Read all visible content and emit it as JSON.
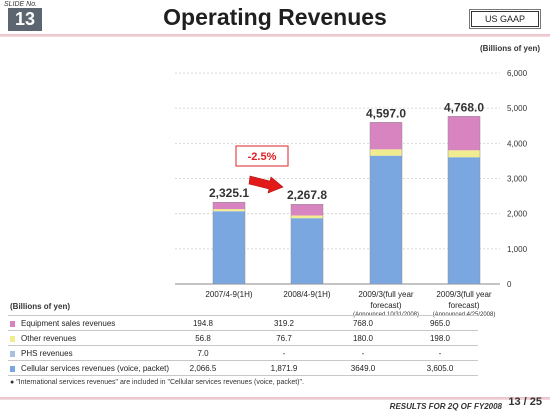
{
  "header": {
    "slide_no_label": "SLIDE No.",
    "slide_no": "13",
    "title": "Operating Revenues",
    "badge": "US GAAP"
  },
  "units_label": "(Billions of yen)",
  "chart_data": {
    "type": "bar",
    "stacked": true,
    "categories": [
      "2007/4-9(1H)",
      "2008/4-9(1H)",
      "2009/3(full year forecast)",
      "2009/3(full year forecast)"
    ],
    "category_lines": [
      [
        "2007/4-9(1H)"
      ],
      [
        "2008/4-9(1H)"
      ],
      [
        "2009/3(full year",
        "forecast)"
      ],
      [
        "2009/3(full year",
        "forecast)"
      ]
    ],
    "sub_notes": [
      "",
      "",
      "(Announced 10/31/2008)",
      "(Announced 4/25/2008)"
    ],
    "series": [
      {
        "name": "Cellular services revenues (voice, packet)",
        "color": "#7ba7e0",
        "values": [
          2066.5,
          1871.9,
          3649.0,
          3605.0
        ]
      },
      {
        "name": "PHS revenues",
        "color": "#aac0de",
        "values": [
          7.0,
          0,
          0,
          0
        ]
      },
      {
        "name": "Other revenues",
        "color": "#f2ec90",
        "values": [
          56.8,
          76.7,
          180.0,
          198.0
        ]
      },
      {
        "name": "Equipment sales revenues",
        "color": "#d884c0",
        "values": [
          194.8,
          319.2,
          768.0,
          965.0
        ]
      }
    ],
    "totals": [
      "2,325.1",
      "2,267.8",
      "4,597.0",
      "4,768.0"
    ],
    "ylim": [
      0,
      6000
    ],
    "yticks": [
      "0",
      "1,000",
      "2,000",
      "3,000",
      "4,000",
      "5,000",
      "6,000"
    ],
    "ytick_values": [
      0,
      1000,
      2000,
      3000,
      4000,
      5000,
      6000
    ],
    "annotation": "-2.5%",
    "ylabel": "(Billions of yen)"
  },
  "table": {
    "units": "(Billions of yen)",
    "rows": [
      {
        "label": "Equipment sales revenues",
        "color": "#d884c0",
        "values": [
          "194.8",
          "319.2",
          "768.0",
          "965.0"
        ]
      },
      {
        "label": "Other revenues",
        "color": "#f2ec90",
        "values": [
          "56.8",
          "76.7",
          "180.0",
          "198.0"
        ]
      },
      {
        "label": "PHS revenues",
        "color": "#aac0de",
        "values": [
          "7.0",
          "-",
          "-",
          "-"
        ]
      },
      {
        "label": "Cellular services revenues (voice, packet)",
        "color": "#7ba7e0",
        "values": [
          "2,066.5",
          "1,871.9",
          "3649.0",
          "3,605.0"
        ]
      }
    ]
  },
  "note": "\"International services revenues\" are included in \"Cellular services revenues (voice, packet)\".",
  "footer": {
    "text": "RESULTS FOR 2Q OF FY2008",
    "page": "13 / 25"
  }
}
